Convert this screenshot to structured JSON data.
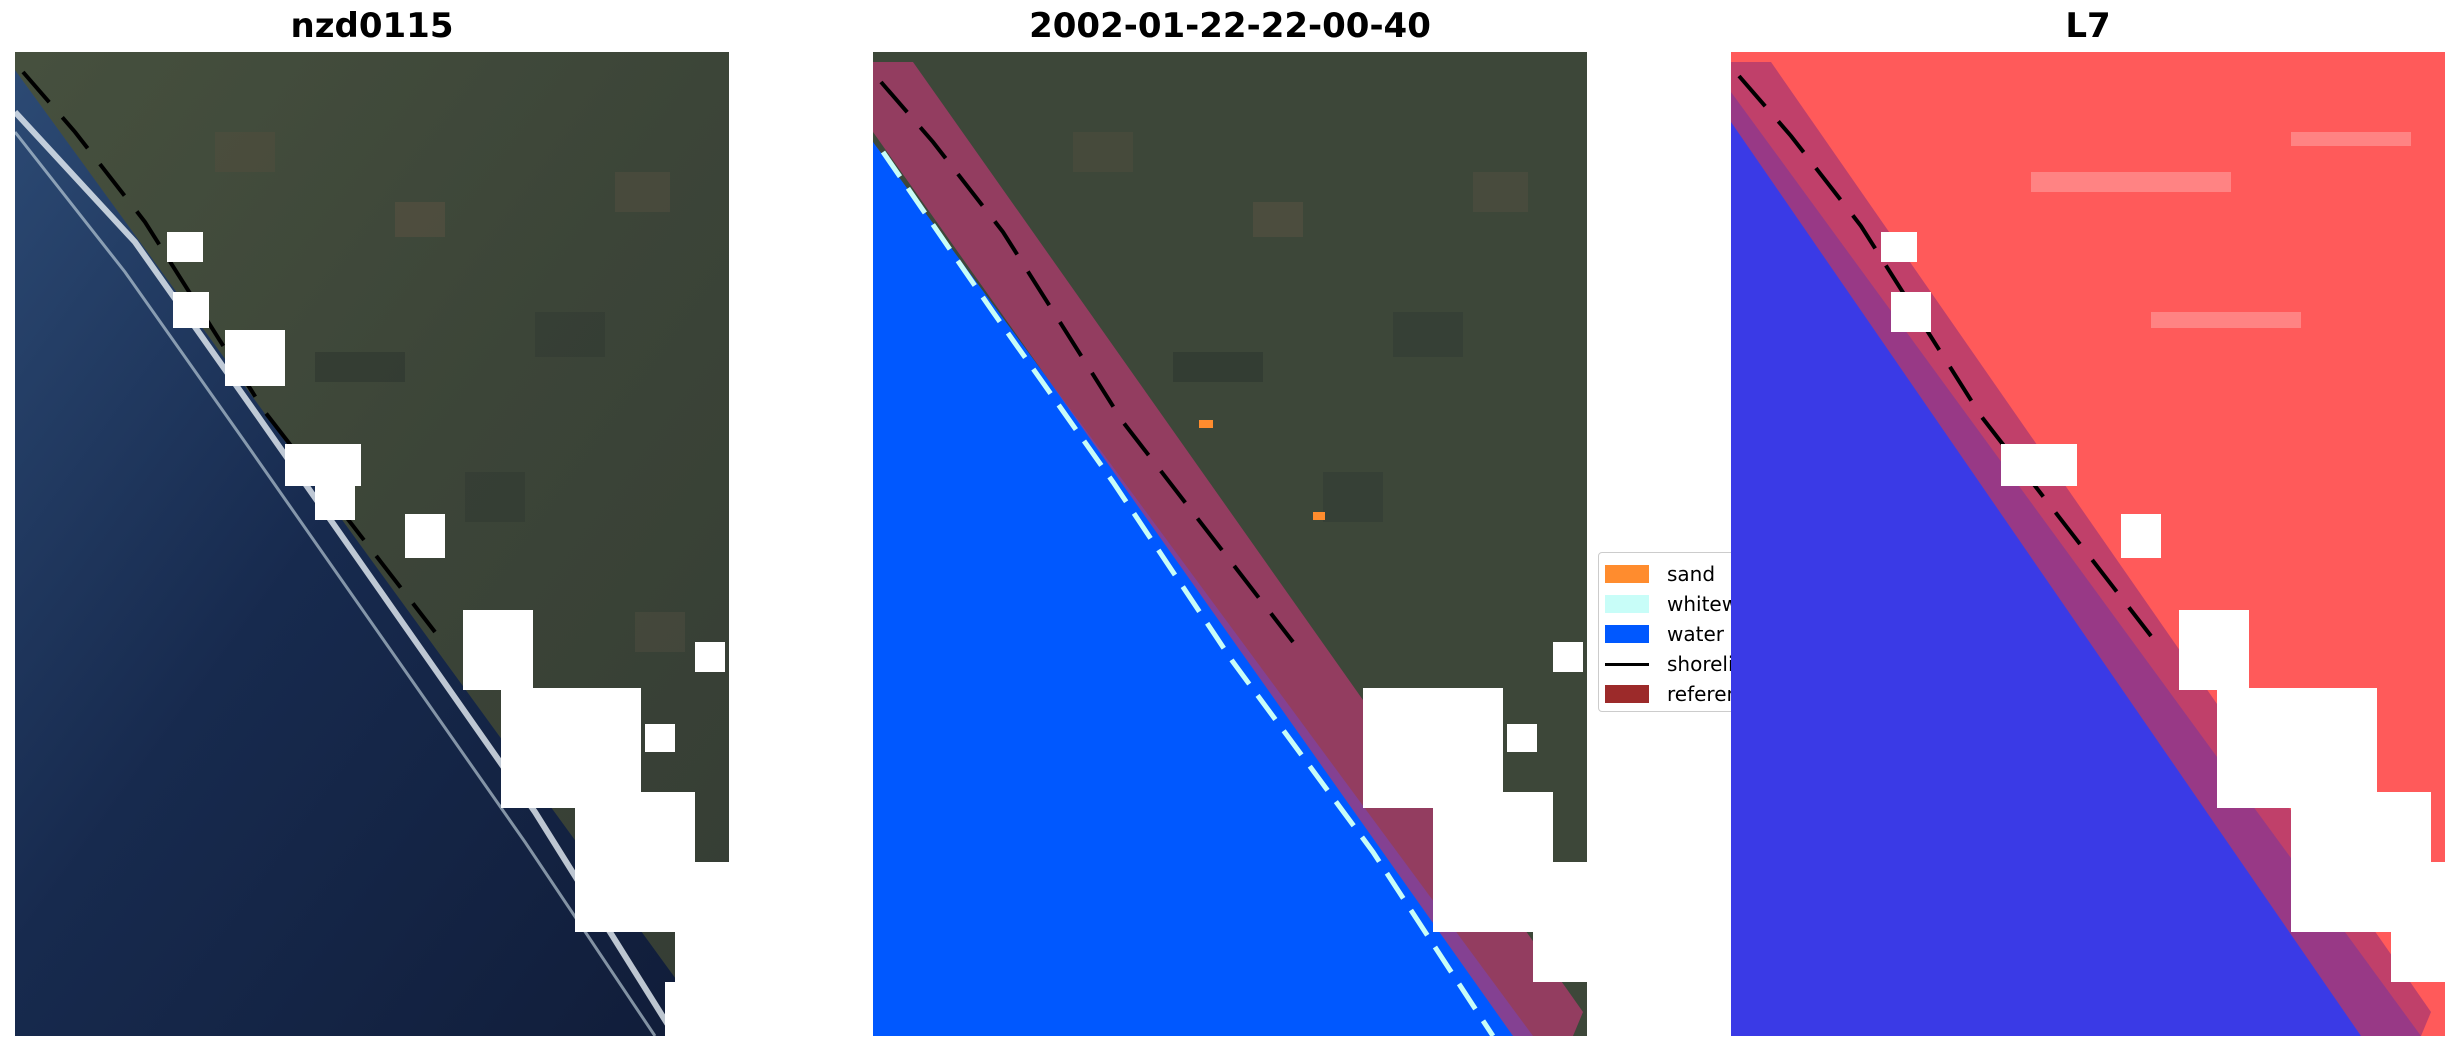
{
  "panels": [
    {
      "title": "nzd0115"
    },
    {
      "title": "2002-01-22-22-00-40"
    },
    {
      "title": "L7"
    }
  ],
  "legend": {
    "items": [
      {
        "label": "sand",
        "color": "#ff8c2e",
        "kind": "patch"
      },
      {
        "label": "whitewater",
        "color": "#c8fdf8",
        "kind": "patch"
      },
      {
        "label": "water",
        "color": "#0058ff",
        "kind": "patch"
      },
      {
        "label": "shoreline",
        "color": "#000000",
        "kind": "line"
      },
      {
        "label": "reference shoreline buffer",
        "color": "#9c2a2a",
        "kind": "patch"
      }
    ]
  },
  "colors": {
    "ocean_rgb": "#16264a",
    "land_rgb": "#3e4a3c",
    "water_class": "#0058ff",
    "land_index": "#ff5a5a",
    "water_index": "#3a3ae6",
    "cloud_mask": "#ffffff",
    "buffer": "#b03a6e"
  }
}
